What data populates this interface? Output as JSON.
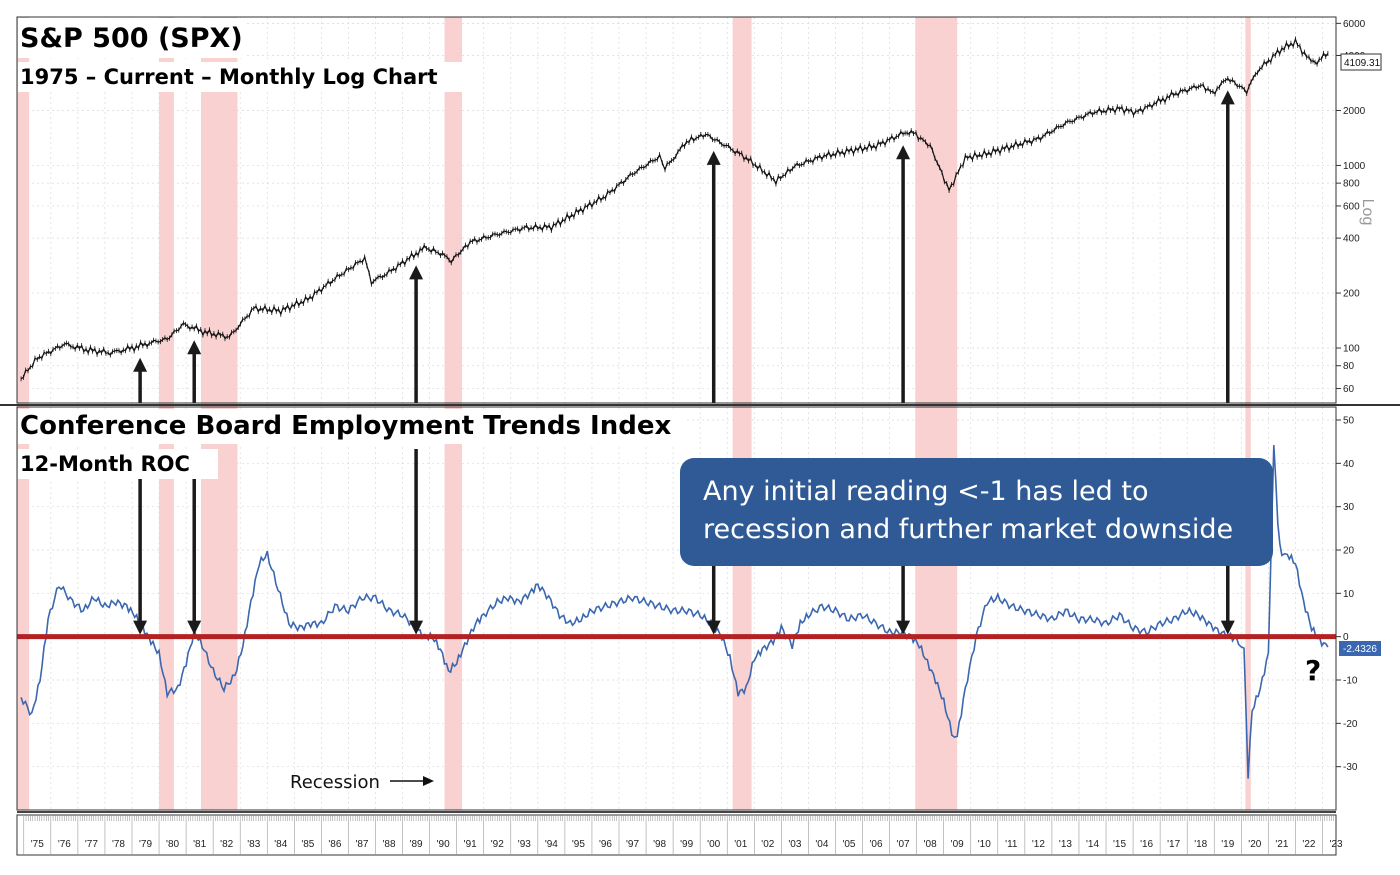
{
  "chart_data": [
    {
      "type": "line",
      "title": "S&P 500 (SPX)",
      "subtitle": "1975 – Current – Monthly Log Chart",
      "ylabel": "Log",
      "yscale": "log",
      "ylim": [
        50,
        6500
      ],
      "yticks": [
        60,
        80,
        100,
        200,
        400,
        600,
        800,
        1000,
        2000,
        4000,
        6000
      ],
      "last_value_label": "4109.31",
      "series": [
        {
          "x": [
            1974.9,
            1975.5,
            1976.5,
            1977.3,
            1978.2,
            1979.0,
            1979.8,
            1980.3,
            1980.9,
            1981.7,
            1982.6,
            1983.5,
            1984.5,
            1985.5,
            1986.5,
            1987.6,
            1987.85,
            1988.5,
            1989.5,
            1989.8,
            1990.4,
            1990.8,
            1991.5,
            1992.5,
            1993.5,
            1994.5,
            1995.5,
            1996.5,
            1997.5,
            1998.5,
            1998.7,
            1999.5,
            2000.2,
            2000.8,
            2001.7,
            2002.8,
            2003.5,
            2004.5,
            2005.5,
            2006.5,
            2007.5,
            2007.8,
            2008.5,
            2009.2,
            2009.8,
            2010.5,
            2011.5,
            2012.5,
            2013.5,
            2014.5,
            2015.5,
            2016.1,
            2016.7,
            2017.5,
            2018.5,
            2018.95,
            2019.5,
            2020.2,
            2020.6,
            2021.5,
            2022.0,
            2022.5,
            2022.8,
            2023.2
          ],
          "values": [
            68,
            88,
            105,
            98,
            94,
            100,
            108,
            112,
            135,
            122,
            115,
            165,
            160,
            185,
            240,
            310,
            230,
            260,
            330,
            355,
            330,
            300,
            380,
            420,
            455,
            460,
            560,
            680,
            900,
            1120,
            960,
            1350,
            1480,
            1320,
            1100,
            820,
            990,
            1120,
            1200,
            1280,
            1500,
            1540,
            1280,
            730,
            1100,
            1150,
            1270,
            1400,
            1700,
            1950,
            2050,
            1950,
            2150,
            2450,
            2750,
            2500,
            3000,
            2550,
            3300,
            4350,
            4750,
            3800,
            3700,
            4109
          ]
        }
      ]
    },
    {
      "type": "line",
      "title": "Conference Board Employment Trends Index",
      "subtitle": "12-Month ROC",
      "ylim": [
        -40,
        53
      ],
      "yticks": [
        -30,
        -20,
        -10,
        0,
        10,
        20,
        30,
        40,
        50
      ],
      "last_value_label": "-2.4326",
      "reference_line": 0,
      "series": [
        {
          "x": [
            1974.9,
            1975.3,
            1975.6,
            1975.9,
            1976.3,
            1976.8,
            1977.2,
            1977.6,
            1978.0,
            1978.4,
            1978.8,
            1979.1,
            1979.4,
            1979.7,
            1980.0,
            1980.3,
            1980.7,
            1981.0,
            1981.3,
            1981.6,
            1982.0,
            1982.4,
            1982.8,
            1983.1,
            1983.4,
            1983.7,
            1984.0,
            1984.4,
            1984.8,
            1985.2,
            1985.6,
            1986.0,
            1986.5,
            1987.0,
            1987.5,
            1988.0,
            1988.5,
            1989.0,
            1989.5,
            1989.8,
            1990.1,
            1990.4,
            1990.7,
            1991.0,
            1991.3,
            1991.7,
            1992.0,
            1992.5,
            1992.9,
            1993.3,
            1993.7,
            1994.0,
            1994.4,
            1994.8,
            1995.2,
            1995.6,
            1996.0,
            1996.5,
            1997.0,
            1997.5,
            1998.0,
            1998.5,
            1999.0,
            1999.5,
            2000.0,
            2000.4,
            2000.8,
            2001.1,
            2001.4,
            2001.7,
            2002.0,
            2002.3,
            2002.7,
            2003.0,
            2003.4,
            2003.7,
            2004.0,
            2004.5,
            2005.0,
            2005.5,
            2006.0,
            2006.5,
            2007.0,
            2007.4,
            2007.8,
            2008.1,
            2008.4,
            2008.7,
            2009.0,
            2009.3,
            2009.5,
            2009.8,
            2010.2,
            2010.6,
            2011.0,
            2011.5,
            2012.0,
            2012.5,
            2013.0,
            2013.5,
            2014.0,
            2014.5,
            2015.0,
            2015.5,
            2016.0,
            2016.5,
            2017.0,
            2017.5,
            2018.0,
            2018.4,
            2018.8,
            2019.2,
            2019.6,
            2019.9,
            2020.1,
            2020.25,
            2020.4,
            2020.7,
            2021.0,
            2021.2,
            2021.35,
            2021.5,
            2021.7,
            2022.0,
            2022.3,
            2022.6,
            2022.9,
            2023.2
          ],
          "values": [
            -14,
            -18,
            -10,
            4,
            12,
            8,
            6,
            9,
            7,
            8,
            7,
            5,
            2,
            -1,
            -4,
            -13,
            -12,
            -6,
            1,
            -2,
            -8,
            -12,
            -9,
            -2,
            8,
            17,
            19,
            11,
            3,
            2,
            3,
            3,
            7,
            6,
            9,
            9,
            6,
            5,
            2,
            0,
            0,
            -3,
            -8,
            -6,
            -2,
            3,
            5,
            8,
            9,
            8,
            10,
            12,
            9,
            5,
            3,
            4,
            6,
            7,
            8,
            9,
            8,
            7,
            6,
            6,
            5,
            3,
            0,
            -5,
            -13,
            -12,
            -5,
            -3,
            -1,
            2,
            -2,
            3,
            5,
            7,
            6,
            4,
            5,
            3,
            1,
            1,
            0,
            -2,
            -6,
            -10,
            -15,
            -22,
            -23,
            -12,
            0,
            8,
            9,
            7,
            6,
            5,
            4,
            6,
            4,
            4,
            3,
            5,
            2,
            1,
            3,
            4,
            6,
            5,
            3,
            1,
            0,
            -1,
            -3,
            -32,
            -17,
            -12,
            -4,
            45,
            26,
            18,
            19,
            17,
            8,
            2,
            -1,
            -2.4
          ]
        }
      ]
    }
  ],
  "x_axis": {
    "start": 1974.75,
    "end": 2023.5,
    "labels": [
      "'75",
      "'76",
      "'77",
      "'78",
      "'79",
      "'80",
      "'81",
      "'82",
      "'83",
      "'84",
      "'85",
      "'86",
      "'87",
      "'88",
      "'89",
      "'90",
      "'91",
      "'92",
      "'93",
      "'94",
      "'95",
      "'96",
      "'97",
      "'98",
      "'99",
      "'00",
      "'01",
      "'02",
      "'03",
      "'04",
      "'05",
      "'06",
      "'07",
      "'08",
      "'09",
      "'10",
      "'11",
      "'12",
      "'13",
      "'14",
      "'15",
      "'16",
      "'17",
      "'18",
      "'19",
      "'20",
      "'21",
      "'22",
      "'23"
    ]
  },
  "recessions": [
    [
      1974.75,
      1975.2
    ],
    [
      1980.0,
      1980.55
    ],
    [
      1981.55,
      1982.9
    ],
    [
      1990.55,
      1991.2
    ],
    [
      2001.2,
      2001.9
    ],
    [
      2007.95,
      2009.5
    ],
    [
      2020.15,
      2020.35
    ]
  ],
  "arrows": [
    1979.3,
    1981.3,
    1989.5,
    2000.5,
    2007.5,
    2019.5
  ],
  "annotations": {
    "callout": [
      "Any initial reading <-1 has led to",
      "recession and further market downside"
    ],
    "recession_label": "Recession",
    "question_mark": "?"
  },
  "colors": {
    "recession": "#f8cccc",
    "spx_line": "#111111",
    "eti_line": "#3a67b0",
    "zero_line": "#b22222",
    "callout_bg": "#2f5a96",
    "arrow": "#1a1a1a"
  }
}
